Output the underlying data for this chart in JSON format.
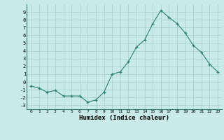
{
  "x": [
    0,
    1,
    2,
    3,
    4,
    5,
    6,
    7,
    8,
    9,
    10,
    11,
    12,
    13,
    14,
    15,
    16,
    17,
    18,
    19,
    20,
    21,
    22,
    23
  ],
  "y": [
    -0.5,
    -0.8,
    -1.3,
    -1.1,
    -1.8,
    -1.8,
    -1.8,
    -2.6,
    -2.3,
    -1.3,
    1.0,
    1.3,
    2.6,
    4.5,
    5.4,
    7.5,
    9.2,
    8.3,
    7.5,
    6.3,
    4.7,
    3.8,
    2.3,
    1.3
  ],
  "xlim": [
    -0.5,
    23.5
  ],
  "ylim": [
    -3.5,
    10.0
  ],
  "yticks": [
    -3,
    -2,
    -1,
    0,
    1,
    2,
    3,
    4,
    5,
    6,
    7,
    8,
    9
  ],
  "xticks": [
    0,
    1,
    2,
    3,
    4,
    5,
    6,
    7,
    8,
    9,
    10,
    11,
    12,
    13,
    14,
    15,
    16,
    17,
    18,
    19,
    20,
    21,
    22,
    23
  ],
  "xlabel": "Humidex (Indice chaleur)",
  "line_color": "#2d7f6e",
  "marker_color": "#2d7f6e",
  "bg_color": "#c8eae8",
  "grid_color": "#9dcfcc",
  "title": ""
}
